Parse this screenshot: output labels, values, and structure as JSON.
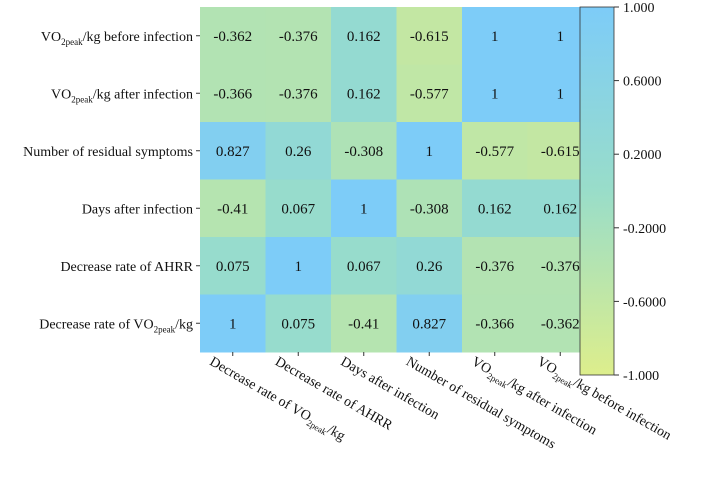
{
  "chart_data": {
    "type": "heatmap",
    "title": "",
    "row_labels": [
      {
        "pre": "VO",
        "sub": "2peak",
        "post": "/kg before infection"
      },
      {
        "pre": "VO",
        "sub": "2peak",
        "post": "/kg after infection"
      },
      {
        "pre": "Number of residual symptoms",
        "sub": "",
        "post": ""
      },
      {
        "pre": "Days after infection",
        "sub": "",
        "post": ""
      },
      {
        "pre": "Decrease rate of AHRR",
        "sub": "",
        "post": ""
      },
      {
        "pre": "Decrease rate of VO",
        "sub": "2peak",
        "post": "/kg"
      }
    ],
    "col_labels": [
      {
        "pre": "Decrease rate of VO",
        "sub": "2peak",
        "post": "/kg"
      },
      {
        "pre": "Decrease rate of AHRR",
        "sub": "",
        "post": ""
      },
      {
        "pre": "Days after infection",
        "sub": "",
        "post": ""
      },
      {
        "pre": "Number of residual symptoms",
        "sub": "",
        "post": ""
      },
      {
        "pre": "VO",
        "sub": "2peak",
        "post": "/kg after infection"
      },
      {
        "pre": "VO",
        "sub": "2peak",
        "post": "/kg before infection"
      }
    ],
    "values": [
      [
        -0.362,
        -0.376,
        0.162,
        -0.615,
        1,
        1
      ],
      [
        -0.366,
        -0.376,
        0.162,
        -0.577,
        1,
        1
      ],
      [
        0.827,
        0.26,
        -0.308,
        1,
        -0.577,
        -0.615
      ],
      [
        -0.41,
        0.067,
        1,
        -0.308,
        0.162,
        0.162
      ],
      [
        0.075,
        1,
        0.067,
        0.26,
        -0.376,
        -0.376
      ],
      [
        1,
        0.075,
        -0.41,
        0.827,
        -0.366,
        -0.362
      ]
    ],
    "value_labels": [
      [
        "-0.362",
        "-0.376",
        "0.162",
        "-0.615",
        "1",
        "1"
      ],
      [
        "-0.366",
        "-0.376",
        "0.162",
        "-0.577",
        "1",
        "1"
      ],
      [
        "0.827",
        "0.26",
        "-0.308",
        "1",
        "-0.577",
        "-0.615"
      ],
      [
        "-0.41",
        "0.067",
        "1",
        "-0.308",
        "0.162",
        "0.162"
      ],
      [
        "0.075",
        "1",
        "0.067",
        "0.26",
        "-0.376",
        "-0.376"
      ],
      [
        "1",
        "0.075",
        "-0.41",
        "0.827",
        "-0.366",
        "-0.362"
      ]
    ],
    "colorbar": {
      "range": [
        -1,
        1
      ],
      "ticks": [
        1,
        0.6,
        0.2,
        -0.2,
        -0.6,
        -1
      ],
      "tick_labels": [
        "1.000",
        "0.6000",
        "0.2000",
        "-0.2000",
        "-0.6000",
        "-1.000"
      ],
      "colors": {
        "low": "#DDEE8C",
        "mid": "#99DDC9",
        "high": "#7DCCF8"
      }
    }
  }
}
